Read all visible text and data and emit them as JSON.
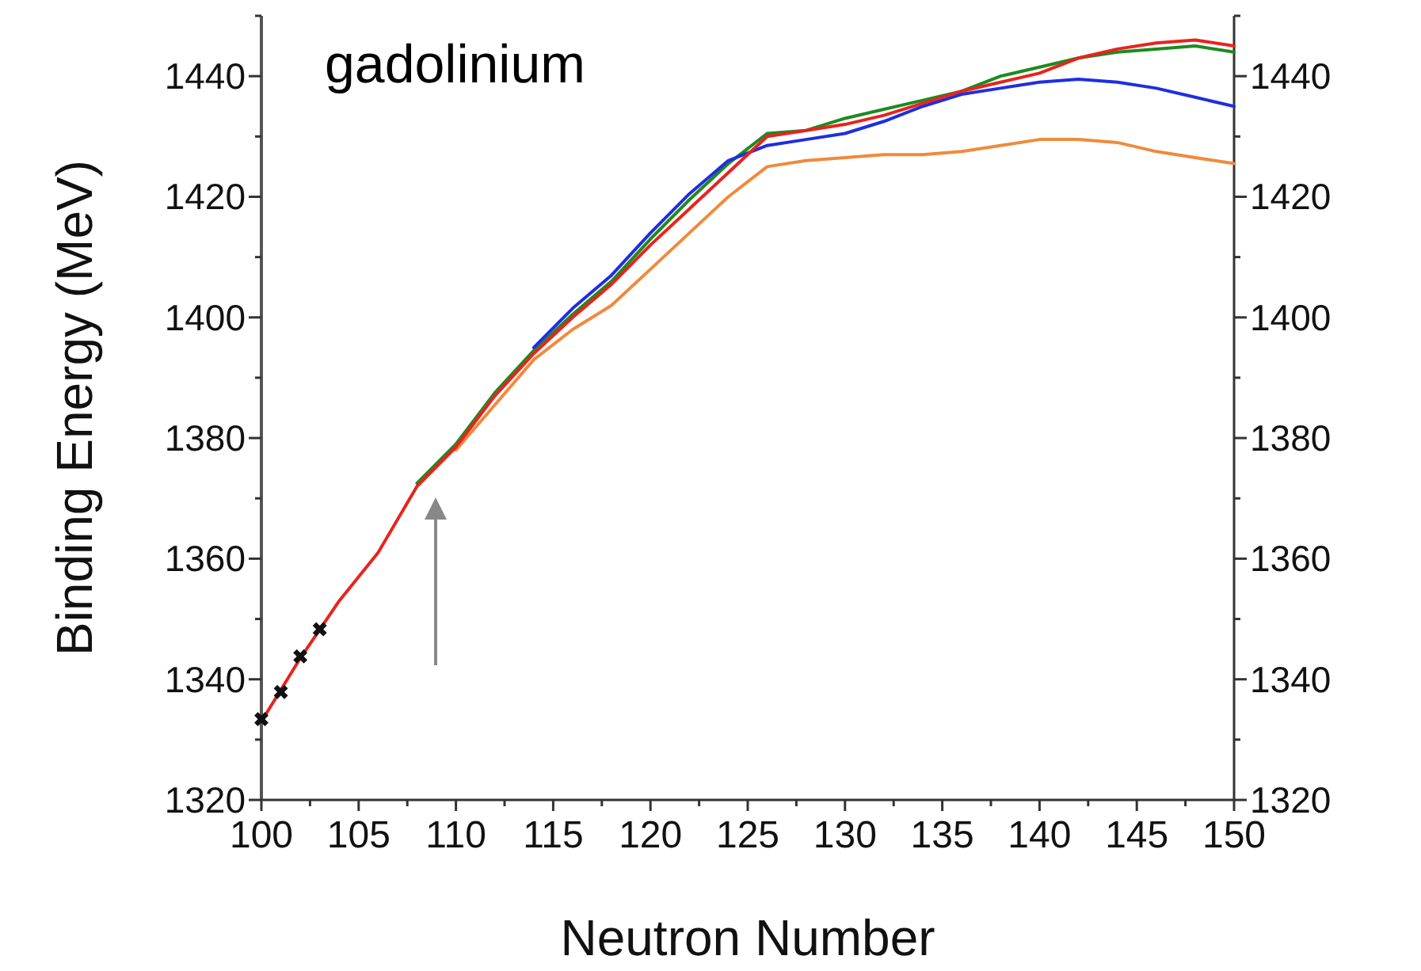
{
  "chart_data": {
    "type": "line",
    "xlabel": "Neutron Number",
    "ylabel": "Binding Energy (MeV)",
    "annotations": [
      "gadolinium"
    ],
    "xlim": [
      100,
      150
    ],
    "xticks": [
      100,
      {
        "value": 102.5,
        "label": null
      },
      105,
      {
        "value": 107.5,
        "label": null
      },
      110,
      {
        "value": 112.5,
        "label": null
      },
      115,
      {
        "value": 117.5,
        "label": null
      },
      120,
      {
        "value": 122.5,
        "label": null
      },
      125,
      {
        "value": 127.5,
        "label": null
      },
      130,
      {
        "value": 132.5,
        "label": null
      },
      135,
      {
        "value": 137.5,
        "label": null
      },
      140,
      {
        "value": 142.5,
        "label": null
      },
      145,
      {
        "value": 147.5,
        "label": null
      },
      150
    ],
    "ylim": [
      1320,
      1450
    ],
    "yticks": [
      1320,
      {
        "value": 1330,
        "label": null
      },
      1340,
      {
        "value": 1350,
        "label": null
      },
      1360,
      {
        "value": 1370,
        "label": null
      },
      1380,
      {
        "value": 1390,
        "label": null
      },
      1400,
      {
        "value": 1410,
        "label": null
      },
      1420,
      {
        "value": 1430,
        "label": null
      },
      1440,
      {
        "value": 1450,
        "label": null
      }
    ],
    "y2lim": [
      1320,
      1450
    ],
    "y2ticks": [
      1320,
      {
        "value": 1330,
        "label": null
      },
      1340,
      {
        "value": 1350,
        "label": null
      },
      1360,
      {
        "value": 1370,
        "label": null
      },
      1380,
      {
        "value": 1390,
        "label": null
      },
      1400,
      {
        "value": 1410,
        "label": null
      },
      1420,
      {
        "value": 1430,
        "label": null
      },
      1440,
      {
        "value": 1450,
        "label": null
      }
    ],
    "series": [
      {
        "color": "#f08a3c",
        "x": [
          110,
          112,
          114,
          116,
          118,
          120,
          122,
          124,
          126,
          128,
          130,
          132,
          134,
          136,
          138,
          140,
          142,
          144,
          146,
          148,
          150
        ],
        "values": [
          1378,
          1385.5,
          1393,
          1398,
          1402,
          1408,
          1414,
          1420,
          1425,
          1426,
          1426.5,
          1427,
          1427,
          1427.5,
          1428.5,
          1429.5,
          1429.5,
          1429,
          1427.5,
          1426.5,
          1425.5
        ]
      },
      {
        "color": "#1e8a1e",
        "x": [
          108,
          110,
          112,
          114,
          116,
          118,
          120,
          122,
          124,
          126,
          128,
          130,
          132,
          134,
          136,
          138,
          140,
          142,
          144,
          146,
          148,
          150
        ],
        "values": [
          1372.5,
          1379,
          1387.5,
          1394.5,
          1400.5,
          1406,
          1413,
          1419.5,
          1425.5,
          1430.5,
          1431,
          1433,
          1434.5,
          1436,
          1437.5,
          1440,
          1441.5,
          1443,
          1444,
          1444.5,
          1445,
          1444
        ]
      },
      {
        "color": "#1f2ee0",
        "x": [
          114,
          116,
          118,
          120,
          122,
          124,
          126,
          128,
          130,
          132,
          134,
          136,
          138,
          140,
          142,
          144,
          146,
          148,
          150
        ],
        "values": [
          1395,
          1401.5,
          1407,
          1414,
          1420.5,
          1426,
          1428.5,
          1429.5,
          1430.5,
          1432.5,
          1435,
          1437,
          1438,
          1439,
          1439.5,
          1439,
          1438,
          1436.5,
          1435
        ]
      },
      {
        "color": "#e8231e",
        "x": [
          100,
          102,
          104,
          106,
          108,
          110,
          112,
          114,
          116,
          118,
          120,
          122,
          124,
          126,
          128,
          130,
          132,
          134,
          136,
          138,
          140,
          142,
          144,
          146,
          148,
          150
        ],
        "values": [
          1333,
          1343.5,
          1353,
          1361,
          1372,
          1378.5,
          1387,
          1394,
          1400,
          1405.5,
          1412,
          1418,
          1424,
          1430,
          1431,
          1432,
          1433.5,
          1435.5,
          1437.5,
          1439,
          1440.5,
          1443,
          1444.5,
          1445.5,
          1446,
          1445
        ]
      },
      {
        "type": "scatter",
        "color": "#111111",
        "marker": "cross",
        "x": [
          100,
          101,
          102,
          103
        ],
        "values": [
          1333.4,
          1337.9,
          1343.8,
          1348.3
        ]
      }
    ]
  }
}
